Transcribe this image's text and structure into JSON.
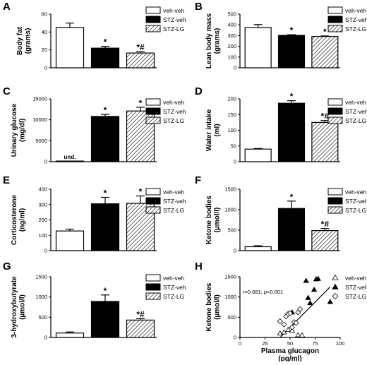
{
  "colors": {
    "veh-veh": "#ffffff",
    "STZ-veh": "#000000",
    "STZ-LG": "hatch"
  },
  "chart_data": [
    {
      "id": "A",
      "type": "bar",
      "panel_letter": "A",
      "ylabel": "Body fat (grams)",
      "categories": [
        "veh-veh",
        "STZ-veh",
        "STZ-LG"
      ],
      "values": [
        45,
        22,
        16.5
      ],
      "errors": [
        5,
        2,
        1.5
      ],
      "annotations": [
        "",
        "*",
        "*#"
      ],
      "ylim": [
        0,
        60
      ],
      "yticks": [
        0,
        20,
        40,
        60
      ],
      "legend": [
        "veh-veh",
        "STZ-veh",
        "STZ-LG"
      ]
    },
    {
      "id": "B",
      "type": "bar",
      "panel_letter": "B",
      "ylabel": "Lean body mass (grams)",
      "categories": [
        "veh-veh",
        "STZ-veh",
        "STZ-LG"
      ],
      "values": [
        375,
        302,
        292
      ],
      "errors": [
        28,
        6,
        5
      ],
      "annotations": [
        "",
        "*",
        "*"
      ],
      "ylim": [
        0,
        500
      ],
      "yticks": [
        0,
        100,
        200,
        300,
        400,
        500
      ],
      "legend": [
        "veh-veh",
        "STZ-veh",
        "STZ-LG"
      ]
    },
    {
      "id": "C",
      "type": "bar",
      "panel_letter": "C",
      "ylabel": "Urinary glucose (mg/dl)",
      "categories": [
        "veh-veh",
        "STZ-veh",
        "STZ-LG"
      ],
      "values": [
        150,
        10800,
        12100
      ],
      "errors": [
        0,
        500,
        900
      ],
      "annotations": [
        "und.",
        "*",
        "*"
      ],
      "ylim": [
        0,
        15000
      ],
      "yticks": [
        0,
        5000,
        10000,
        15000
      ],
      "legend": [
        "veh-veh",
        "STZ-veh",
        "STZ-LG"
      ]
    },
    {
      "id": "D",
      "type": "bar",
      "panel_letter": "D",
      "ylabel": "Water intake (ml)",
      "categories": [
        "veh-veh",
        "STZ-veh",
        "STZ-LG"
      ],
      "values": [
        40,
        186,
        125
      ],
      "errors": [
        2,
        8,
        6
      ],
      "annotations": [
        "",
        "*",
        "*#"
      ],
      "ylim": [
        0,
        200
      ],
      "yticks": [
        0,
        50,
        100,
        150,
        200
      ],
      "legend": [
        "veh-veh",
        "STZ-veh",
        "STZ-LG"
      ]
    },
    {
      "id": "E",
      "type": "bar",
      "panel_letter": "E",
      "ylabel": "Corticosterone (ng/ml)",
      "categories": [
        "veh-veh",
        "STZ-veh",
        "STZ-LG"
      ],
      "values": [
        128,
        305,
        308
      ],
      "errors": [
        12,
        42,
        48
      ],
      "annotations": [
        "",
        "*",
        "*"
      ],
      "ylim": [
        0,
        400
      ],
      "yticks": [
        0,
        100,
        200,
        300,
        400
      ],
      "legend": [
        "veh-veh",
        "STZ-veh",
        "STZ-LG"
      ]
    },
    {
      "id": "F",
      "type": "bar",
      "panel_letter": "F",
      "ylabel": "Ketone bodies (µmol/l)",
      "categories": [
        "veh-veh",
        "STZ-veh",
        "STZ-LG"
      ],
      "values": [
        95,
        1030,
        490
      ],
      "errors": [
        25,
        180,
        50
      ],
      "annotations": [
        "",
        "*",
        "*#"
      ],
      "ylim": [
        0,
        1500
      ],
      "yticks": [
        0,
        500,
        1000,
        1500
      ],
      "legend": [
        "veh-veh",
        "STZ-veh",
        "STZ-LG"
      ]
    },
    {
      "id": "G",
      "type": "bar",
      "panel_letter": "G",
      "ylabel": "3-hydroxybutyrate (µmol/l)",
      "categories": [
        "veh-veh",
        "STZ-veh",
        "STZ-LG"
      ],
      "values": [
        110,
        890,
        430
      ],
      "errors": [
        25,
        160,
        35
      ],
      "annotations": [
        "",
        "*",
        "*#"
      ],
      "ylim": [
        0,
        1500
      ],
      "yticks": [
        0,
        500,
        1000,
        1500
      ],
      "legend": [
        "veh-veh",
        "STZ-veh",
        "STZ-LG"
      ]
    },
    {
      "id": "H",
      "type": "scatter",
      "panel_letter": "H",
      "ylabel": "Ketone bodies (µmol/l)",
      "xlabel": "Plasma glucagon (pg/ml)",
      "stat_text": "r=0.681; p<0.001",
      "xlim": [
        0,
        100
      ],
      "xticks": [
        0,
        25,
        50,
        75,
        100
      ],
      "ylim": [
        0,
        1500
      ],
      "yticks": [
        0,
        500,
        1000,
        1500
      ],
      "fit_line": [
        [
          40,
          0
        ],
        [
          90,
          1250
        ]
      ],
      "series": [
        {
          "name": "veh-veh",
          "marker": "triangle-open",
          "points": [
            [
              40,
              100
            ],
            [
              44,
              130
            ],
            [
              48,
              190
            ],
            [
              52,
              170
            ],
            [
              58,
              60
            ],
            [
              62,
              55
            ]
          ]
        },
        {
          "name": "STZ-veh",
          "marker": "triangle-filled",
          "points": [
            [
              52,
              620
            ],
            [
              66,
              1400
            ],
            [
              68,
              980
            ],
            [
              70,
              850
            ],
            [
              74,
              1180
            ],
            [
              76,
              1440
            ],
            [
              78,
              1450
            ],
            [
              90,
              880
            ]
          ]
        },
        {
          "name": "STZ-LG",
          "marker": "diamond-open",
          "points": [
            [
              40,
              400
            ],
            [
              44,
              320
            ],
            [
              46,
              520
            ],
            [
              48,
              580
            ],
            [
              50,
              600
            ],
            [
              52,
              250
            ],
            [
              54,
              380
            ],
            [
              56,
              360
            ],
            [
              58,
              620
            ],
            [
              60,
              700
            ]
          ]
        }
      ],
      "legend": [
        "veh-veh",
        "STZ-veh",
        "STZ-LG"
      ]
    }
  ]
}
